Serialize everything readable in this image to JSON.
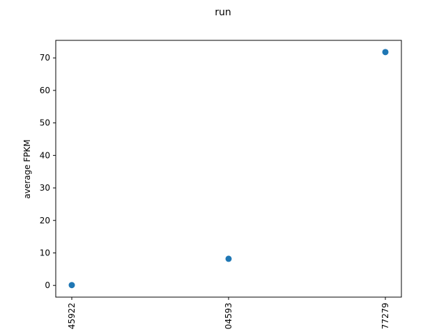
{
  "chart_data": {
    "type": "scatter",
    "title": "run",
    "xlabel": "",
    "ylabel": "average FPKM",
    "categories": [
      "45922",
      "04593",
      "77279"
    ],
    "values": [
      0.1,
      8.2,
      71.8
    ],
    "ylim": [
      -3.6,
      75.4
    ],
    "yticks": [
      0,
      10,
      20,
      30,
      40,
      50,
      60,
      70
    ],
    "grid": false,
    "color": "#1f77b4"
  }
}
